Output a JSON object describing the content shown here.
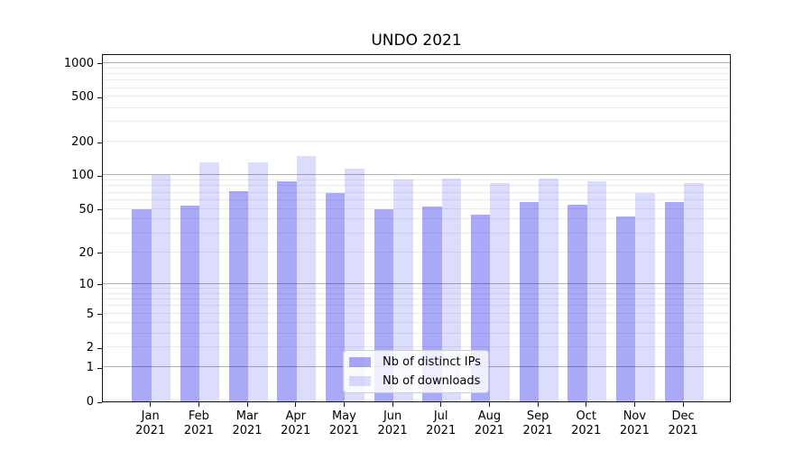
{
  "title": "UNDO 2021",
  "chart_data": {
    "type": "bar",
    "title": "UNDO 2021",
    "categories": [
      "Jan",
      "Feb",
      "Mar",
      "Apr",
      "May",
      "Jun",
      "Jul",
      "Aug",
      "Sep",
      "Oct",
      "Nov",
      "Dec"
    ],
    "year_label": "2021",
    "series": [
      {
        "key": "distinct-ips",
        "name": "Nb of distinct IPs",
        "color": "rgba(10,10,235,0.35)",
        "values": [
          50,
          53,
          72,
          88,
          70,
          50,
          52,
          44,
          58,
          54,
          43,
          58
        ]
      },
      {
        "key": "downloads",
        "name": "Nb of downloads",
        "color": "rgba(10,10,235,0.14)",
        "values": [
          100,
          130,
          130,
          150,
          115,
          91,
          93,
          86,
          93,
          88,
          70,
          85
        ]
      }
    ],
    "y_axis": {
      "scale": "log1p",
      "min": 0,
      "max": 1220,
      "tick_values": [
        0,
        1,
        2,
        5,
        10,
        20,
        50,
        100,
        200,
        500,
        1000
      ],
      "tick_labels": [
        "0",
        "1",
        "2",
        "5",
        "10",
        "20",
        "50",
        "100",
        "200",
        "500",
        "1000"
      ],
      "major_grid_values": [
        1,
        10,
        100,
        1000
      ]
    },
    "legend": {
      "position": "bottom-center"
    },
    "colors": {
      "grid_major": "#b3b3b3",
      "grid_minor": "#ececec",
      "spine": "#111111",
      "background": "#ffffff"
    }
  }
}
